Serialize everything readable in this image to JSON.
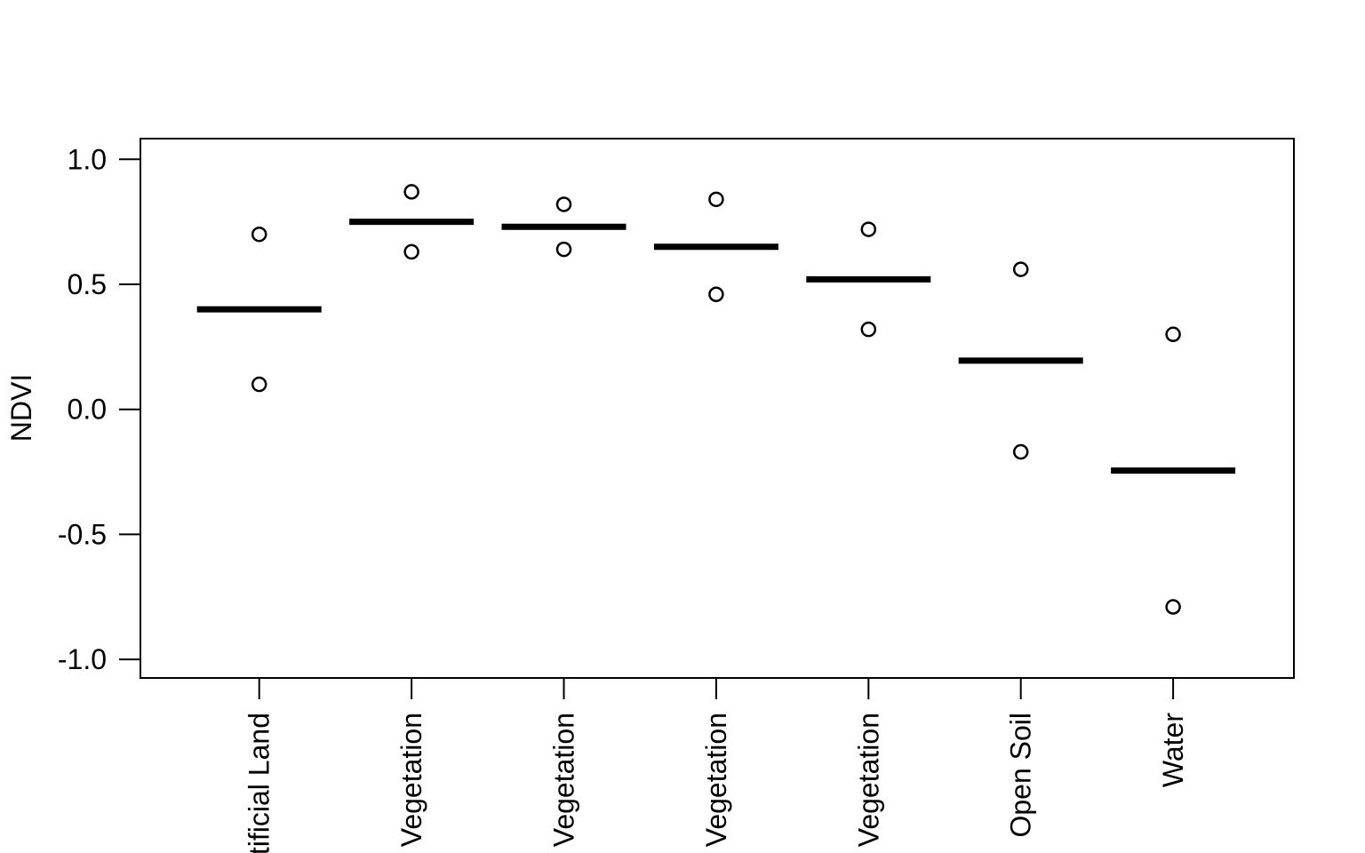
{
  "figure": {
    "background_color": "#ffffff",
    "ink_color": "#000000",
    "description": "Range plot of NDVI by land cover class: open circles mark the upper and lower NDVI values, thick horizontal bars mark the class mean"
  },
  "chart_data": {
    "type": "scatter",
    "title": "",
    "xlabel": "",
    "ylabel": "NDVI",
    "categories": [
      "Artificial Land",
      "Vegetation",
      "Vegetation",
      "Vegetation",
      "Vegetation",
      "Open Soil",
      "Water"
    ],
    "series": [
      {
        "name": "upper value",
        "marker": "open-circle",
        "values": [
          0.7,
          0.87,
          0.82,
          0.84,
          0.72,
          0.56,
          0.3
        ]
      },
      {
        "name": "lower value",
        "marker": "open-circle",
        "values": [
          0.1,
          0.63,
          0.64,
          0.46,
          0.32,
          -0.17,
          -0.79
        ]
      },
      {
        "name": "mean bar",
        "marker": "thick-horizontal-line",
        "values": [
          0.4,
          0.75,
          0.73,
          0.65,
          0.52,
          0.195,
          -0.245
        ]
      }
    ],
    "yticks": {
      "values": [
        1.0,
        0.5,
        0.0,
        -0.5,
        -1.0
      ],
      "labels": [
        "1.0",
        "0.5",
        "0.0",
        "-0.5",
        "-1.0"
      ]
    },
    "ylim": [
      -1.08,
      1.08
    ],
    "grid": false,
    "legend": null,
    "x_tick_label_rotation_deg": 90
  }
}
